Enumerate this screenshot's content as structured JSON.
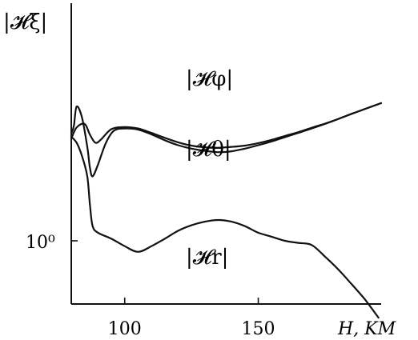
{
  "chart_data": {
    "type": "line",
    "ylabel": "|𝓗ξ|",
    "xlabel": "H, KM",
    "xlim": [
      80,
      196
    ],
    "x_ticks": [
      100,
      150
    ],
    "x_tick_labels": [
      "100",
      "150"
    ],
    "y_tick_labels": [
      "10⁰"
    ],
    "y_scale": "log",
    "grid": false,
    "series": [
      {
        "name": "|𝓗φ|",
        "x": [
          80,
          82,
          85,
          87,
          89,
          91,
          95,
          100,
          105,
          110,
          115,
          120,
          125,
          130,
          135,
          140,
          145,
          150,
          155,
          160,
          165,
          170,
          175,
          180,
          185,
          190,
          196
        ],
        "y": [
          2.65,
          2.95,
          3.05,
          2.75,
          2.55,
          2.62,
          2.9,
          2.96,
          2.92,
          2.8,
          2.67,
          2.56,
          2.48,
          2.44,
          2.43,
          2.45,
          2.48,
          2.54,
          2.62,
          2.72,
          2.82,
          2.94,
          3.06,
          3.2,
          3.36,
          3.52,
          3.72
        ]
      },
      {
        "name": "|𝓗θ|",
        "x": [
          80,
          81,
          82,
          84,
          86,
          87,
          88,
          90,
          93,
          96,
          100,
          105,
          110,
          115,
          120,
          125,
          130,
          135,
          140,
          145,
          150,
          155,
          160,
          165,
          170,
          175,
          180,
          185,
          190,
          196
        ],
        "y": [
          2.78,
          3.0,
          3.6,
          3.25,
          2.45,
          2.0,
          1.85,
          2.07,
          2.55,
          2.86,
          2.92,
          2.89,
          2.76,
          2.61,
          2.49,
          2.41,
          2.36,
          2.33,
          2.35,
          2.41,
          2.49,
          2.58,
          2.69,
          2.8,
          2.92,
          3.05,
          3.2,
          3.36,
          3.52,
          3.72
        ]
      },
      {
        "name": "|𝓗r|",
        "x": [
          80,
          82,
          84,
          86,
          87,
          88,
          90,
          95,
          100,
          105,
          110,
          115,
          120,
          125,
          130,
          135,
          140,
          145,
          150,
          155,
          160,
          165,
          170,
          175,
          180,
          185,
          190,
          195
        ],
        "y": [
          2.7,
          2.55,
          2.25,
          1.85,
          1.4,
          1.15,
          1.08,
          1.02,
          0.95,
          0.9,
          0.95,
          1.02,
          1.1,
          1.16,
          1.2,
          1.22,
          1.2,
          1.15,
          1.08,
          1.04,
          1.0,
          0.98,
          0.96,
          0.86,
          0.76,
          0.66,
          0.57,
          0.48
        ]
      }
    ]
  }
}
